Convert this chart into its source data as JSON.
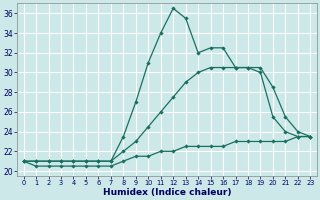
{
  "x": [
    0,
    1,
    2,
    3,
    4,
    5,
    6,
    7,
    8,
    9,
    10,
    11,
    12,
    13,
    14,
    15,
    16,
    17,
    18,
    19,
    20,
    21,
    22,
    23
  ],
  "line1": [
    21,
    21,
    21,
    21,
    21,
    21,
    21,
    21,
    23.5,
    27,
    31,
    34,
    36.5,
    35.5,
    32,
    32.5,
    32.5,
    30.5,
    30.5,
    30,
    25.5,
    24,
    23.5,
    23.5
  ],
  "line2": [
    21,
    21,
    21,
    21,
    21,
    21,
    21,
    21,
    22,
    23,
    24.5,
    26,
    27.5,
    29,
    30,
    30.5,
    30.5,
    30.5,
    30.5,
    30.5,
    28.5,
    25.5,
    24,
    23.5
  ],
  "line3": [
    21,
    20.5,
    20.5,
    20.5,
    20.5,
    20.5,
    20.5,
    20.5,
    21,
    21.5,
    21.5,
    22,
    22,
    22.5,
    22.5,
    22.5,
    22.5,
    23,
    23,
    23,
    23,
    23,
    23.5,
    23.5
  ],
  "xlabel": "Humidex (Indice chaleur)",
  "xlim": [
    -0.5,
    23.5
  ],
  "ylim": [
    19.5,
    37
  ],
  "yticks": [
    20,
    22,
    24,
    26,
    28,
    30,
    32,
    34,
    36
  ],
  "xticks": [
    0,
    1,
    2,
    3,
    4,
    5,
    6,
    7,
    8,
    9,
    10,
    11,
    12,
    13,
    14,
    15,
    16,
    17,
    18,
    19,
    20,
    21,
    22,
    23
  ],
  "bg_color": "#cce8e8",
  "line_color": "#1a7060",
  "grid_color": "#ffffff",
  "font_color": "#000060",
  "tick_fontsize": 5.5,
  "xlabel_fontsize": 6.5,
  "marker_size": 2.2,
  "line_width": 0.9
}
